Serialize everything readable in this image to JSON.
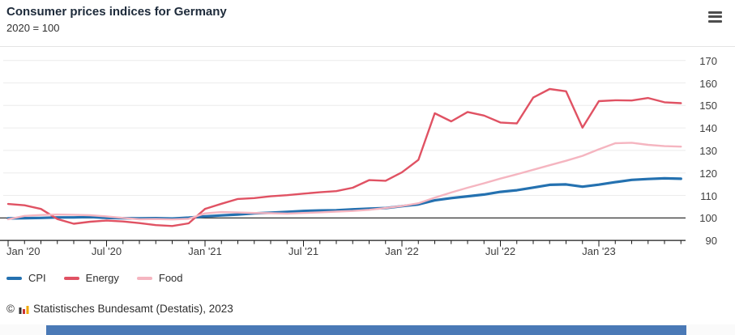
{
  "header": {
    "title": "Consumer prices indices for Germany",
    "subtitle": "2020 = 100",
    "menu_icon": "hamburger"
  },
  "chart_data": {
    "type": "line",
    "title": "Consumer prices indices for Germany",
    "subtitle": "2020 = 100",
    "x_unit": "month",
    "x_start": "Jan 2020",
    "x_end": "Jun 2023",
    "x_major_tick_labels": [
      "Jan '20",
      "Jul '20",
      "Jan '21",
      "Jul '21",
      "Jan '22",
      "Jul '22",
      "Jan '23"
    ],
    "major_every": 6,
    "ylim": [
      90,
      170
    ],
    "yticks": [
      90,
      100,
      110,
      120,
      130,
      140,
      150,
      160,
      170
    ],
    "baseline": 100,
    "grid": true,
    "y_axis_side": "right",
    "legend_position": "bottom-left",
    "series": [
      {
        "name": "CPI",
        "color": "#2471b0",
        "width": 3.2,
        "values": [
          99.8,
          99.9,
          100.0,
          100.2,
          100.2,
          100.4,
          100.0,
          99.9,
          99.8,
          99.9,
          99.7,
          100.1,
          100.7,
          101.1,
          101.5,
          102.0,
          102.3,
          102.7,
          103.1,
          103.3,
          103.4,
          103.8,
          104.1,
          104.4,
          105.2,
          106.0,
          107.8,
          108.8,
          109.6,
          110.4,
          111.6,
          112.3,
          113.5,
          114.7,
          114.9,
          113.9,
          114.8,
          115.9,
          116.9,
          117.3,
          117.6,
          117.4
        ]
      },
      {
        "name": "Energy",
        "color": "#e05263",
        "width": 2.4,
        "values": [
          106.2,
          105.6,
          104.0,
          99.5,
          97.4,
          98.3,
          98.8,
          98.4,
          97.7,
          96.8,
          96.4,
          97.6,
          104.0,
          106.3,
          108.4,
          108.8,
          109.6,
          110.1,
          110.8,
          111.4,
          111.9,
          113.4,
          116.8,
          116.5,
          120.3,
          125.8,
          146.5,
          142.9,
          147.1,
          145.5,
          142.4,
          142.0,
          153.5,
          157.3,
          156.3,
          140.1,
          151.9,
          152.3,
          152.2,
          153.3,
          151.4,
          151.0
        ]
      },
      {
        "name": "Food",
        "color": "#f5b5c0",
        "width": 2.4,
        "values": [
          99.4,
          100.9,
          101.3,
          101.5,
          101.4,
          101.2,
          100.7,
          100.0,
          99.4,
          99.5,
          99.3,
          99.6,
          102.0,
          102.6,
          102.4,
          102.2,
          102.1,
          101.9,
          102.2,
          102.5,
          102.8,
          103.1,
          103.6,
          104.4,
          105.3,
          106.5,
          109.0,
          111.3,
          113.4,
          115.4,
          117.5,
          119.4,
          121.4,
          123.4,
          125.4,
          127.6,
          130.5,
          133.2,
          133.4,
          132.5,
          131.9,
          131.7
        ]
      }
    ]
  },
  "footer": {
    "copyright": "©",
    "source": "Statistisches Bundesamt (Destatis), 2023"
  },
  "colors": {
    "baseline": "#1a1a1a",
    "grid": "#ececec",
    "axis": "#1a1a1a",
    "range_bar": "#4a79b6",
    "footer_strip": "#fafafa",
    "logo_black": "#333333",
    "logo_red": "#cc3333",
    "logo_gold": "#f0a800"
  }
}
